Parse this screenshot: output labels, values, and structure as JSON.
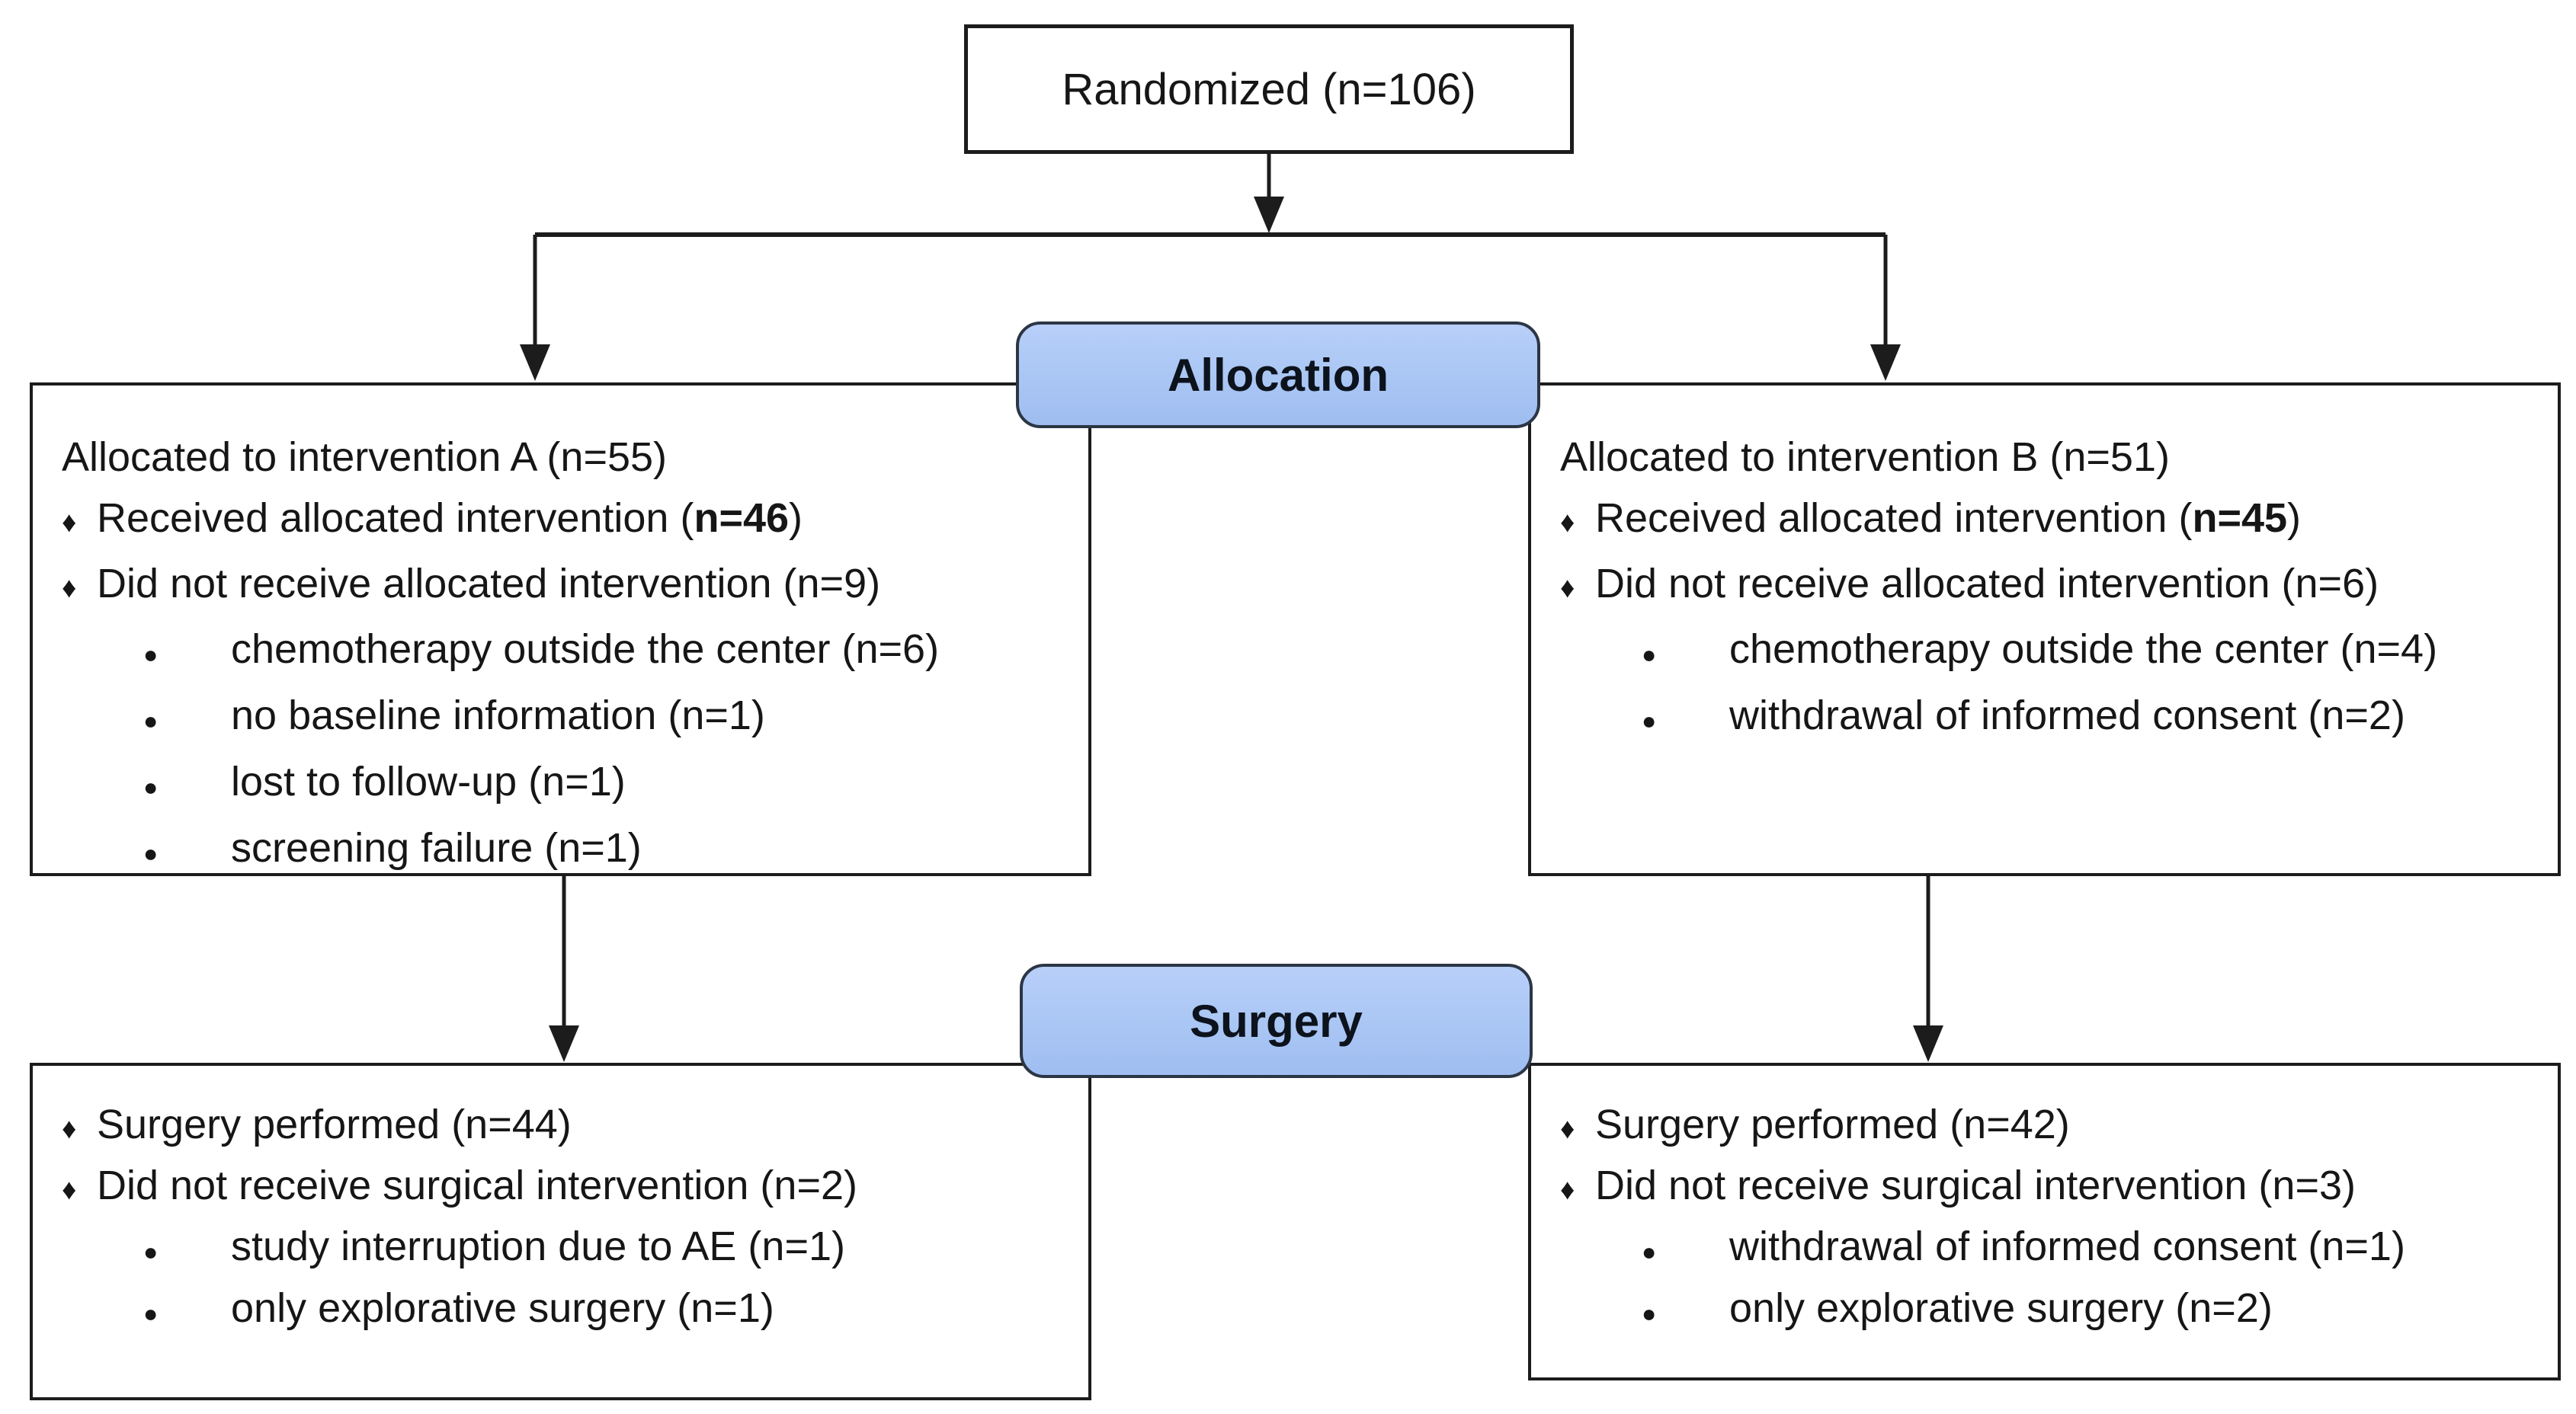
{
  "diagram": {
    "background": "#ffffff",
    "colors": {
      "banner_fill": "#a9c6f4",
      "banner_border": "#2c3644",
      "box_border": "#1c1c1c",
      "text": "#161616"
    },
    "title_box": {
      "label": "Randomized (n=106)"
    },
    "phases": [
      {
        "id": "allocation",
        "label": "Allocation"
      },
      {
        "id": "surgery",
        "label": "Surgery"
      }
    ],
    "boxes": {
      "alloc_left": {
        "lines": [
          {
            "level": 0,
            "pre": "Allocated to intervention A (n=55)"
          },
          {
            "level": 1,
            "pre": "Received allocated intervention (",
            "bold": "n=46",
            "post": ")"
          },
          {
            "level": 1,
            "pre": "Did not receive allocated intervention (n=9)"
          },
          {
            "level": 2,
            "pre": "chemotherapy outside the center (n=6)"
          },
          {
            "level": 2,
            "pre": "no baseline information (n=1)"
          },
          {
            "level": 2,
            "pre": "lost to follow-up (n=1)"
          },
          {
            "level": 2,
            "pre": "screening failure (n=1)"
          }
        ]
      },
      "alloc_right": {
        "lines": [
          {
            "level": 0,
            "pre": "Allocated to intervention B (n=51)"
          },
          {
            "level": 1,
            "pre": "Received allocated intervention (",
            "bold": "n=45",
            "post": ")"
          },
          {
            "level": 1,
            "pre": "Did not receive allocated intervention (n=6)"
          },
          {
            "level": 2,
            "pre": "chemotherapy outside the center (n=4)"
          },
          {
            "level": 2,
            "pre": "withdrawal of informed consent (n=2)"
          }
        ]
      },
      "surg_left": {
        "lines": [
          {
            "level": 1,
            "pre": "Surgery performed (n=44)"
          },
          {
            "level": 1,
            "pre": "Did not receive surgical intervention (n=2)"
          },
          {
            "level": 2,
            "pre": "study interruption due to AE (n=1)"
          },
          {
            "level": 2,
            "pre": "only explorative surgery (n=1)"
          }
        ]
      },
      "surg_right": {
        "lines": [
          {
            "level": 1,
            "pre": "Surgery performed (n=42)"
          },
          {
            "level": 1,
            "pre": "Did not receive surgical intervention (n=3)"
          },
          {
            "level": 2,
            "pre": "withdrawal of informed consent (n=1)"
          },
          {
            "level": 2,
            "pre": "only explorative surgery (n=2)"
          }
        ]
      }
    },
    "bullet_glyphs": {
      "diamond": "♦",
      "dot": "●"
    }
  }
}
